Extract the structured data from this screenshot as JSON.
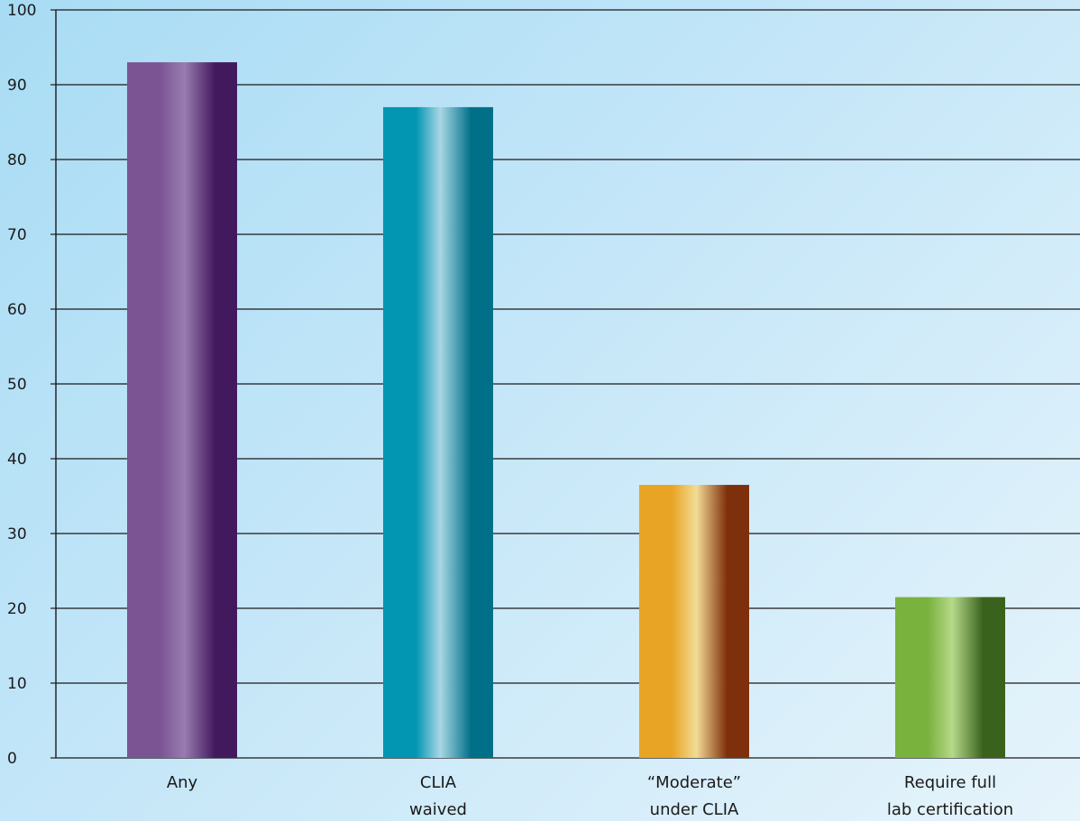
{
  "chart_data": {
    "type": "bar",
    "categories": [
      [
        "Any"
      ],
      [
        "CLIA",
        "waived"
      ],
      [
        "“Moderate”",
        "under CLIA"
      ],
      [
        "Require full",
        "lab certification"
      ]
    ],
    "values": [
      93,
      87,
      36.5,
      21.5
    ],
    "ylim": [
      0,
      100
    ],
    "yticks": [
      0,
      10,
      20,
      30,
      40,
      50,
      60,
      70,
      80,
      90,
      100
    ],
    "grid": true,
    "xlabel": "",
    "ylabel": "",
    "title": "",
    "bar_colors": [
      [
        "#7b5493",
        "#9a7cb0",
        "#43195e"
      ],
      [
        "#0396b3",
        "#a9d7e6",
        "#006f88"
      ],
      [
        "#e8a425",
        "#f3dc95",
        "#7e2f0c"
      ],
      [
        "#7ab23e",
        "#b6d98a",
        "#39621c"
      ]
    ],
    "grid_color": "#1a1a1a"
  }
}
